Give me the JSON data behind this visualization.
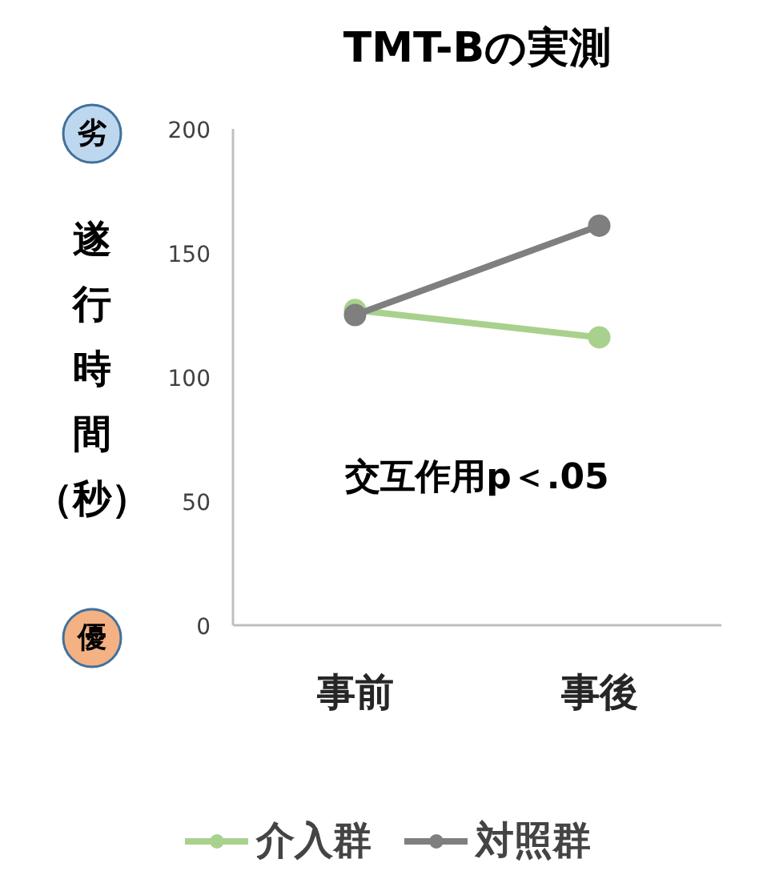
{
  "chart_data": {
    "type": "line",
    "title": "TMT-Bの実測",
    "ylabel": "遂行時間（秒）",
    "categories": [
      "事前",
      "事後"
    ],
    "series": [
      {
        "name": "介入群",
        "color": "#a9d18e",
        "values": [
          127,
          116
        ]
      },
      {
        "name": "対照群",
        "color": "#7f7f7f",
        "values": [
          125,
          161
        ]
      }
    ],
    "ylim": [
      0,
      200
    ],
    "yticks": [
      0,
      50,
      100,
      150,
      200
    ],
    "grid": false,
    "legend": "bottom",
    "marker": "circle",
    "line_style": "solid",
    "annotations": [
      "劣",
      "優",
      "交互作用p＜.05"
    ]
  }
}
